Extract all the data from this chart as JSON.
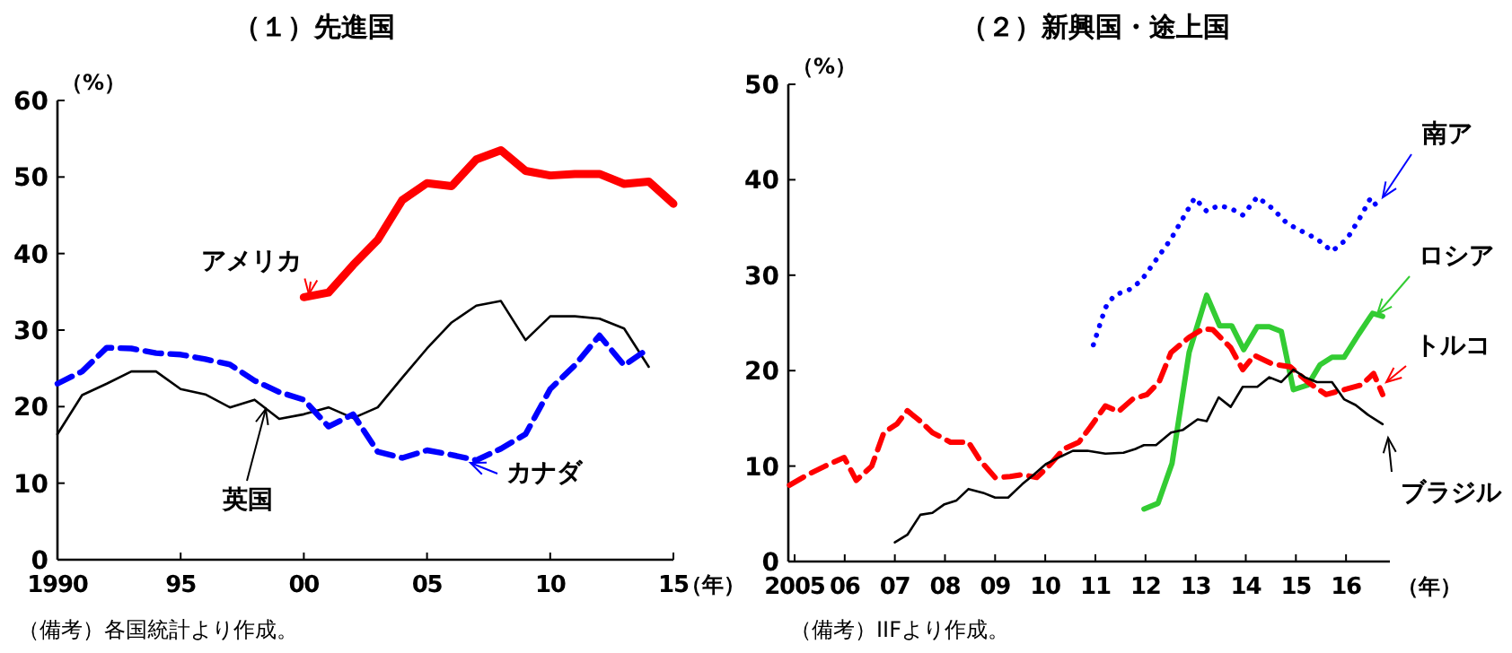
{
  "chart_data": [
    {
      "type": "line",
      "title": "（１）先進国",
      "ylabel": "（%）",
      "xlabel": "（年）",
      "xlim": [
        1990,
        2015
      ],
      "ylim": [
        0,
        60
      ],
      "xticks": [
        {
          "value": 1990,
          "label": "1990"
        },
        {
          "value": 1995,
          "label": "95"
        },
        {
          "value": 2000,
          "label": "00"
        },
        {
          "value": 2005,
          "label": "05"
        },
        {
          "value": 2010,
          "label": "10"
        },
        {
          "value": 2015,
          "label": "15"
        }
      ],
      "yticks": [
        0,
        10,
        20,
        30,
        40,
        50,
        60
      ],
      "grid": false,
      "series": [
        {
          "name": "アメリカ",
          "color": "#ff0000",
          "line_style": "solid",
          "x": [
            2000,
            2001,
            2002,
            2003,
            2004,
            2005,
            2006,
            2007,
            2008,
            2009,
            2010,
            2011,
            2012,
            2013,
            2014,
            2015
          ],
          "values": [
            34.3,
            34.9,
            38.5,
            41.8,
            47.0,
            49.2,
            48.8,
            52.3,
            53.5,
            50.8,
            50.2,
            50.4,
            50.4,
            49.1,
            49.4,
            46.5
          ]
        },
        {
          "name": "英国",
          "color": "#000000",
          "line_style": "solid",
          "x": [
            1990,
            1991,
            1992,
            1993,
            1994,
            1995,
            1996,
            1997,
            1998,
            1999,
            2000,
            2001,
            2002,
            2003,
            2004,
            2005,
            2006,
            2007,
            2008,
            2009,
            2010,
            2011,
            2012,
            2013,
            2014
          ],
          "values": [
            16.4,
            21.5,
            23.0,
            24.6,
            24.6,
            22.3,
            21.6,
            19.9,
            20.9,
            18.4,
            19.0,
            19.9,
            18.5,
            19.9,
            23.8,
            27.6,
            31.0,
            33.2,
            33.8,
            28.7,
            31.8,
            31.8,
            31.5,
            30.2,
            25.2
          ]
        },
        {
          "name": "カナダ",
          "color": "#0000ff",
          "line_style": "dashed",
          "x": [
            1990,
            1991,
            1992,
            1993,
            1994,
            1995,
            1996,
            1997,
            1998,
            1999,
            2000,
            2001,
            2002,
            2003,
            2004,
            2005,
            2006,
            2007,
            2008,
            2009,
            2010,
            2011,
            2012,
            2013,
            2014
          ],
          "values": [
            23.0,
            24.6,
            27.7,
            27.6,
            27.0,
            26.8,
            26.2,
            25.5,
            23.4,
            21.9,
            20.9,
            17.4,
            19.0,
            14.1,
            13.3,
            14.3,
            13.7,
            13.0,
            14.5,
            16.4,
            22.3,
            25.4,
            29.3,
            25.4,
            27.6
          ]
        }
      ],
      "annotations": [
        "（備考）各国統計より作成。"
      ]
    },
    {
      "type": "line",
      "title": "（２）新興国・途上国",
      "ylabel": "（%）",
      "xlabel": "（年）",
      "xlim": [
        2004.875,
        2016.875
      ],
      "ylim": [
        0,
        50
      ],
      "xticks": [
        {
          "value": 2005,
          "label": "2005"
        },
        {
          "value": 2006,
          "label": "06"
        },
        {
          "value": 2007,
          "label": "07"
        },
        {
          "value": 2008,
          "label": "08"
        },
        {
          "value": 2009,
          "label": "09"
        },
        {
          "value": 2010,
          "label": "10"
        },
        {
          "value": 2011,
          "label": "11"
        },
        {
          "value": 2012,
          "label": "12"
        },
        {
          "value": 2013,
          "label": "13"
        },
        {
          "value": 2014,
          "label": "14"
        },
        {
          "value": 2015,
          "label": "15"
        },
        {
          "value": 2016,
          "label": "16"
        }
      ],
      "yticks": [
        0,
        10,
        20,
        30,
        40,
        50
      ],
      "grid": false,
      "series": [
        {
          "name": "南ア",
          "color": "#0000ff",
          "line_style": "dotted",
          "x": [
            2010.96,
            2011.2,
            2011.38,
            2011.68,
            2011.91,
            2012.21,
            2012.51,
            2012.75,
            2012.98,
            2013.22,
            2013.46,
            2013.7,
            2013.94,
            2014.23,
            2014.53,
            2014.83,
            2015.12,
            2015.42,
            2015.72,
            2016.02,
            2016.31,
            2016.49,
            2016.69
          ],
          "values": [
            22.7,
            26.6,
            27.9,
            28.5,
            29.4,
            31.6,
            33.8,
            36.0,
            38.1,
            36.7,
            37.3,
            37.0,
            36.3,
            38.2,
            37.0,
            35.4,
            34.6,
            33.8,
            32.5,
            33.8,
            36.3,
            38.1,
            36.7
          ]
        },
        {
          "name": "ロシア",
          "color": "#33cc33",
          "line_style": "solid",
          "x": [
            2011.97,
            2012.25,
            2012.53,
            2012.87,
            2013.22,
            2013.48,
            2013.72,
            2013.96,
            2014.23,
            2014.47,
            2014.71,
            2014.95,
            2015.24,
            2015.48,
            2015.72,
            2015.96,
            2016.25,
            2016.53,
            2016.73
          ],
          "values": [
            5.5,
            6.1,
            10.3,
            21.9,
            27.9,
            24.7,
            24.7,
            22.2,
            24.6,
            24.6,
            24.1,
            18.0,
            18.5,
            20.6,
            21.4,
            21.4,
            23.8,
            26.0,
            25.7
          ]
        },
        {
          "name": "トルコ",
          "color": "#ff0000",
          "line_style": "dashed",
          "x": [
            2004.9,
            2005.26,
            2005.61,
            2005.99,
            2006.23,
            2006.54,
            2006.78,
            2007.04,
            2007.25,
            2007.51,
            2007.75,
            2008.11,
            2008.47,
            2008.7,
            2009.0,
            2009.3,
            2009.54,
            2009.83,
            2010.07,
            2010.37,
            2010.67,
            2010.9,
            2011.2,
            2011.46,
            2011.74,
            2012.03,
            2012.27,
            2012.51,
            2012.87,
            2013.16,
            2013.34,
            2013.7,
            2013.94,
            2014.17,
            2014.53,
            2014.89,
            2015.24,
            2015.6,
            2015.96,
            2016.31,
            2016.55,
            2016.73
          ],
          "values": [
            8.0,
            9.1,
            10.0,
            10.9,
            8.5,
            10.0,
            13.5,
            14.4,
            15.8,
            14.7,
            13.5,
            12.5,
            12.5,
            10.6,
            8.8,
            8.9,
            9.1,
            8.8,
            10.0,
            11.8,
            12.5,
            14.1,
            16.3,
            15.7,
            17.0,
            17.5,
            18.8,
            21.9,
            23.5,
            24.4,
            24.3,
            22.4,
            20.1,
            21.6,
            20.7,
            20.4,
            18.8,
            17.5,
            18.0,
            18.5,
            19.7,
            17.5
          ]
        },
        {
          "name": "ブラジル",
          "color": "#000000",
          "line_style": "solid",
          "x": [
            2007.0,
            2007.25,
            2007.51,
            2007.75,
            2007.99,
            2008.23,
            2008.47,
            2008.76,
            2009.0,
            2009.26,
            2009.54,
            2009.77,
            2010.01,
            2010.31,
            2010.55,
            2010.84,
            2011.2,
            2011.56,
            2011.8,
            2011.97,
            2012.21,
            2012.51,
            2012.75,
            2013.04,
            2013.22,
            2013.46,
            2013.7,
            2013.94,
            2014.23,
            2014.47,
            2014.71,
            2014.95,
            2015.18,
            2015.42,
            2015.72,
            2015.96,
            2016.19,
            2016.43,
            2016.73
          ],
          "values": [
            2.0,
            2.8,
            4.9,
            5.1,
            6.0,
            6.4,
            7.6,
            7.2,
            6.7,
            6.7,
            8.1,
            9.1,
            10.2,
            11.0,
            11.6,
            11.6,
            11.3,
            11.4,
            11.8,
            12.2,
            12.2,
            13.5,
            13.8,
            14.9,
            14.7,
            17.2,
            16.2,
            18.3,
            18.3,
            19.3,
            18.8,
            20.1,
            19.3,
            18.8,
            18.8,
            17.0,
            16.4,
            15.4,
            14.4
          ]
        }
      ],
      "annotations": [
        "（備考）IIFより作成。"
      ]
    }
  ]
}
